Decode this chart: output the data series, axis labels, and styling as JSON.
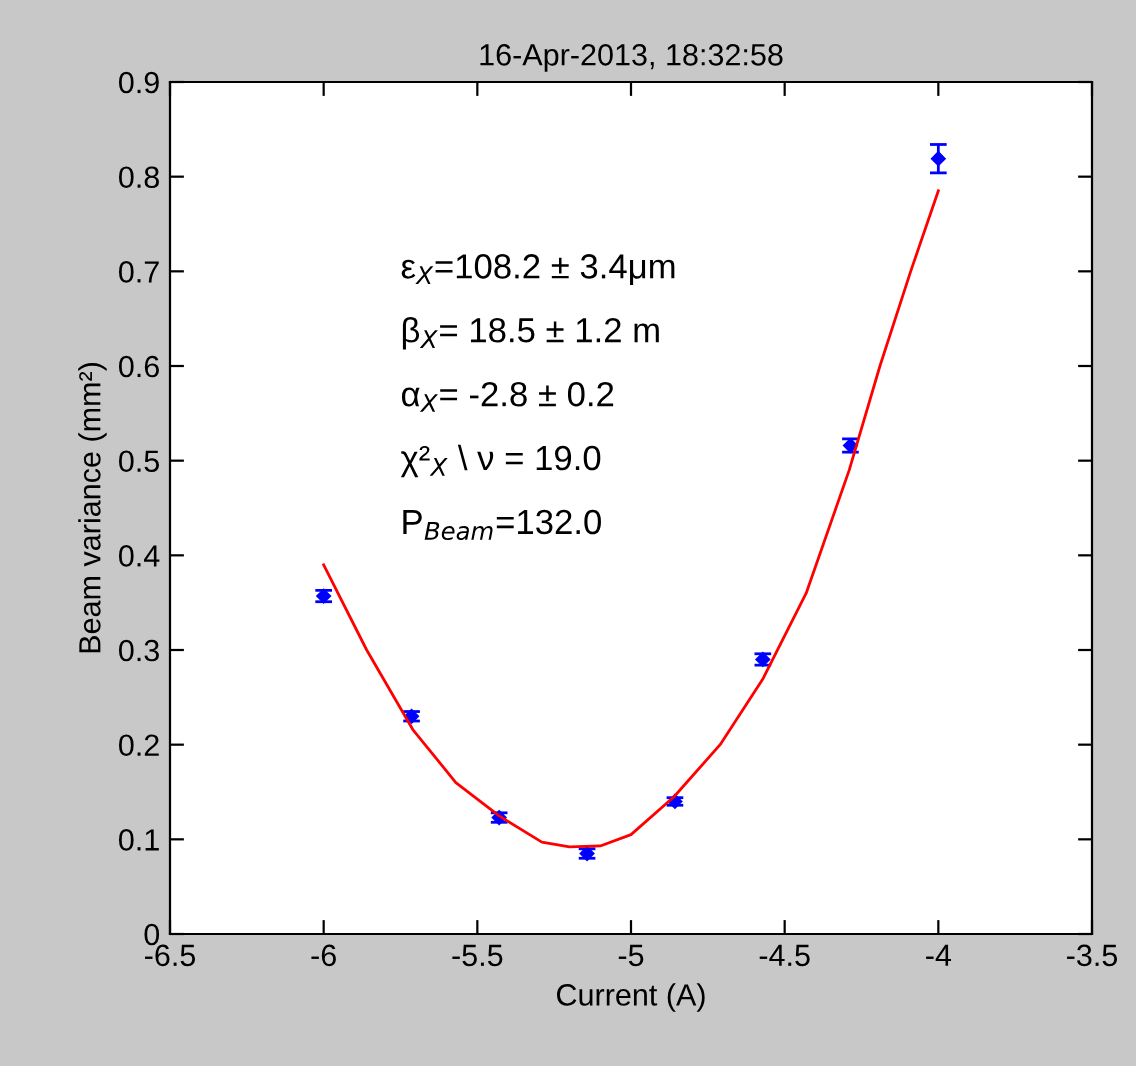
{
  "chart_data": {
    "type": "scatter",
    "title": "16-Apr-2013, 18:32:58",
    "xlabel": "Current (A)",
    "ylabel": "Beam variance (mm²)",
    "xlim": [
      -6.5,
      -3.5
    ],
    "xticks": [
      -6.5,
      -6,
      -5.5,
      -5,
      -4.5,
      -4,
      -3.5
    ],
    "ylim": [
      0,
      0.9
    ],
    "yticks": [
      0,
      0.1,
      0.2,
      0.3,
      0.4,
      0.5,
      0.6,
      0.7,
      0.8,
      0.9
    ],
    "grid": false,
    "legend": false,
    "marker": "diamond",
    "series": [
      {
        "color": "#0000ff",
        "x": [
          -6.0,
          -5.714,
          -5.429,
          -5.143,
          -4.857,
          -4.571,
          -4.286,
          -4.0
        ],
        "values": [
          0.357,
          0.23,
          0.123,
          0.085,
          0.14,
          0.29,
          0.516,
          0.819
        ],
        "errors": [
          0.006,
          0.005,
          0.005,
          0.005,
          0.004,
          0.006,
          0.007,
          0.015
        ]
      },
      {
        "type": "line",
        "color": "#ff0000",
        "marker": "none",
        "line_style": "solid",
        "x": [
          -6.0,
          -5.86,
          -5.71,
          -5.57,
          -5.43,
          -5.29,
          -5.2,
          -5.1,
          -5.0,
          -4.86,
          -4.71,
          -4.57,
          -4.43,
          -4.29,
          -4.19,
          -4.09,
          -4.0
        ],
        "values": [
          0.39,
          0.3,
          0.216,
          0.16,
          0.125,
          0.097,
          0.092,
          0.093,
          0.105,
          0.145,
          0.2,
          0.27,
          0.36,
          0.49,
          0.6,
          0.7,
          0.785
        ]
      }
    ],
    "annotations": [
      "ε$_{X}$=108.2 ± 3.4μm",
      "β$_{X}$= 18.5 ± 1.2 m",
      "α$_{X}$= -2.8 ± 0.2",
      "χ²$_{X}$ \\ ν = 19.0",
      "P$_{Beam}$=132.0"
    ]
  }
}
